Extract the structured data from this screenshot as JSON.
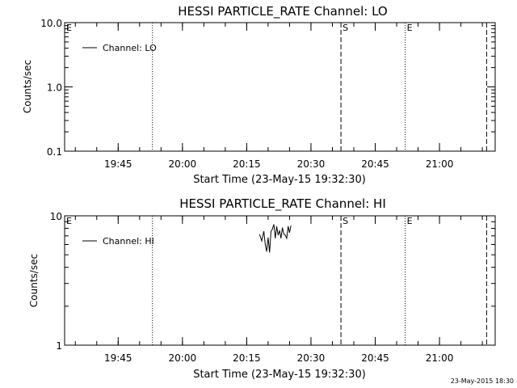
{
  "chart_data": [
    {
      "type": "line",
      "title": "HESSI PARTICLE_RATE Channel: LO",
      "xlabel": "Start Time (23-May-15 19:32:30)",
      "ylabel": "Counts/sec",
      "yscale": "log",
      "ylim": [
        0.1,
        10.0
      ],
      "xlim": [
        "19:32:30",
        "21:13:00"
      ],
      "ytick_labels": [
        "0.1",
        "1.0",
        "10.0"
      ],
      "xtick_labels": [
        "19:45",
        "20:00",
        "20:15",
        "20:30",
        "20:45",
        "21:00"
      ],
      "legend": {
        "placement": "top-left",
        "entries": [
          "Channel: LO"
        ]
      },
      "series": [
        {
          "name": "Channel: LO",
          "x": [],
          "values": []
        }
      ],
      "markers": [
        {
          "label": "E",
          "time": "19:32:30",
          "style": "dotted"
        },
        {
          "label": "",
          "time": "19:53:00",
          "style": "dotted"
        },
        {
          "label": "S",
          "time": "20:37:00",
          "style": "dashed"
        },
        {
          "label": "E",
          "time": "20:52:00",
          "style": "dotted"
        },
        {
          "label": "",
          "time": "21:11:00",
          "style": "dashed"
        },
        {
          "label": "",
          "time": "21:13:00",
          "style": "dotted"
        }
      ]
    },
    {
      "type": "line",
      "title": "HESSI PARTICLE_RATE Channel: HI",
      "xlabel": "Start Time (23-May-15 19:32:30)",
      "ylabel": "Counts/sec",
      "yscale": "log",
      "ylim": [
        1,
        10
      ],
      "xlim": [
        "19:32:30",
        "21:13:00"
      ],
      "ytick_labels": [
        "1",
        "10"
      ],
      "xtick_labels": [
        "19:45",
        "20:00",
        "20:15",
        "20:30",
        "20:45",
        "21:00"
      ],
      "legend": {
        "placement": "top-left",
        "entries": [
          "Channel: HI"
        ]
      },
      "series": [
        {
          "name": "Channel: HI",
          "x": [
            "20:18:00",
            "20:18:30",
            "20:19:00",
            "20:19:20",
            "20:19:40",
            "20:20:00",
            "20:20:20",
            "20:20:40",
            "20:21:00",
            "20:21:20",
            "20:21:40",
            "20:22:00",
            "20:22:20",
            "20:22:40",
            "20:23:00",
            "20:23:20",
            "20:23:40",
            "20:24:00",
            "20:24:20",
            "20:24:40",
            "20:25:00",
            "20:25:20"
          ],
          "values": [
            7.2,
            6.4,
            7.6,
            6.0,
            5.3,
            6.8,
            5.2,
            7.6,
            7.9,
            8.6,
            6.7,
            8.3,
            7.1,
            7.7,
            6.7,
            8.1,
            7.2,
            7.1,
            6.7,
            8.3,
            7.4,
            8.4
          ]
        }
      ],
      "markers": [
        {
          "label": "E",
          "time": "19:32:30",
          "style": "dotted"
        },
        {
          "label": "",
          "time": "19:53:00",
          "style": "dotted"
        },
        {
          "label": "S",
          "time": "20:37:00",
          "style": "dashed"
        },
        {
          "label": "E",
          "time": "20:52:00",
          "style": "dotted"
        },
        {
          "label": "",
          "time": "21:11:00",
          "style": "dashed"
        },
        {
          "label": "",
          "time": "21:13:00",
          "style": "dotted"
        }
      ]
    }
  ],
  "footer": {
    "timestamp": "23-May-2015 18:30"
  }
}
